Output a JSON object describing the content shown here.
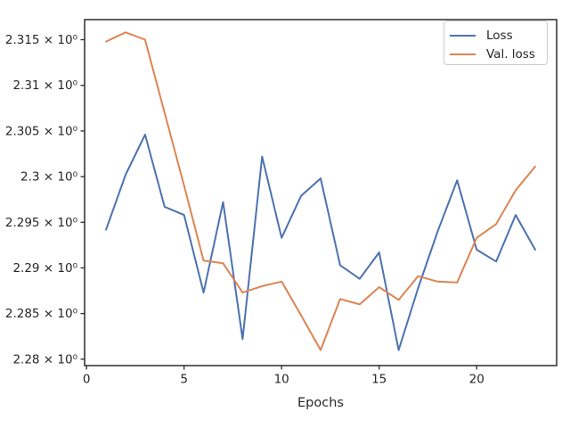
{
  "figure": {
    "background": "#ffffff",
    "text_color": "#262626",
    "axis_color": "#2b2b2b"
  },
  "chart_data": {
    "type": "line",
    "title": "",
    "xlabel": "Epochs",
    "ylabel": "",
    "yscale": "log",
    "grid": false,
    "legend_position": "upper right",
    "xlim": [
      -0.1,
      24.1
    ],
    "ylim": [
      2.2793,
      2.3172
    ],
    "x": [
      1,
      2,
      3,
      4,
      5,
      6,
      7,
      8,
      9,
      10,
      11,
      12,
      13,
      14,
      15,
      16,
      17,
      18,
      19,
      20,
      21,
      22,
      23
    ],
    "series": [
      {
        "name": "Loss",
        "color": "#4c72b0",
        "values": [
          2.2942,
          2.3002,
          2.3046,
          2.2967,
          2.2958,
          2.2873,
          2.2972,
          2.2822,
          2.3022,
          2.2933,
          2.2979,
          2.2998,
          2.2903,
          2.2888,
          2.2917,
          2.281,
          2.2878,
          2.294,
          2.2996,
          2.292,
          2.2907,
          2.2958,
          2.292
        ]
      },
      {
        "name": "Val. loss",
        "color": "#dd8452",
        "values": [
          2.3148,
          2.3158,
          2.315,
          2.307,
          2.299,
          2.2908,
          2.2905,
          2.2873,
          2.288,
          2.2885,
          2.2848,
          2.281,
          2.2866,
          2.286,
          2.2879,
          2.2865,
          2.2891,
          2.2885,
          2.2884,
          2.2933,
          2.2948,
          2.2985,
          2.3011
        ]
      }
    ],
    "xticks": [
      {
        "value": 0,
        "label": "0"
      },
      {
        "value": 5,
        "label": "5"
      },
      {
        "value": 10,
        "label": "10"
      },
      {
        "value": 15,
        "label": "15"
      },
      {
        "value": 20,
        "label": "20"
      }
    ],
    "yticks": [
      {
        "value": 2.315,
        "label": "2.315 × 10⁰"
      },
      {
        "value": 2.31,
        "label": "2.31 × 10⁰"
      },
      {
        "value": 2.305,
        "label": "2.305 × 10⁰"
      },
      {
        "value": 2.3,
        "label": "2.3 × 10⁰"
      },
      {
        "value": 2.295,
        "label": "2.295 × 10⁰"
      },
      {
        "value": 2.29,
        "label": "2.29 × 10⁰"
      },
      {
        "value": 2.285,
        "label": "2.285 × 10⁰"
      },
      {
        "value": 2.28,
        "label": "2.28 × 10⁰"
      }
    ]
  }
}
